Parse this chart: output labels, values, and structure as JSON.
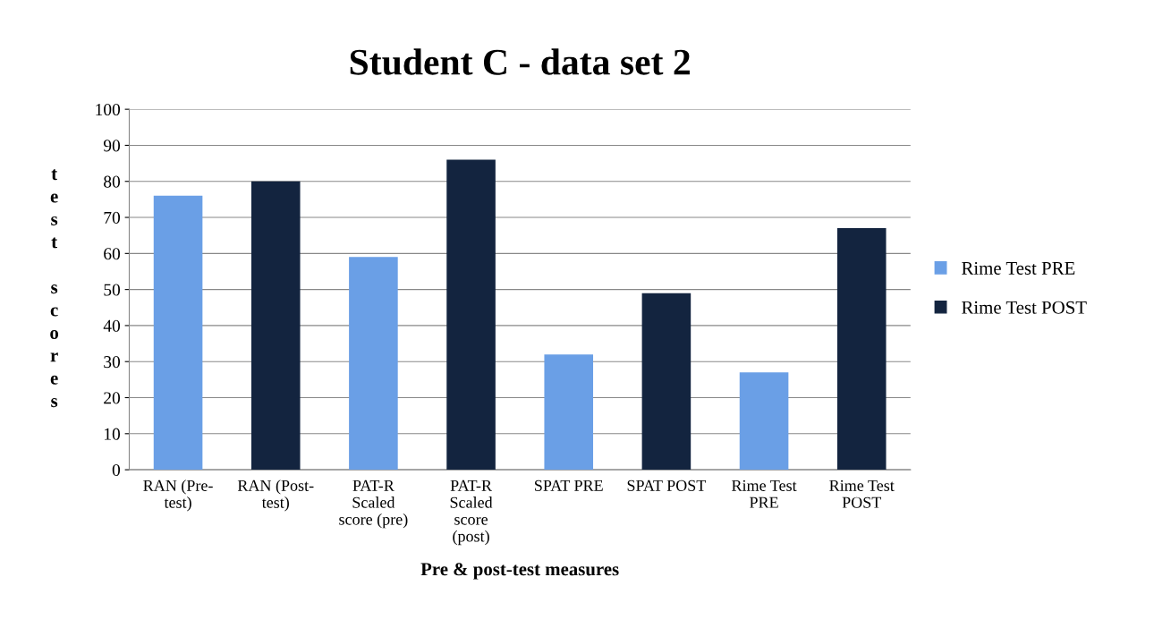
{
  "chart_data": {
    "type": "bar",
    "title": "Student C - data set 2",
    "xlabel": "Pre & post-test measures",
    "ylabel": "test scores",
    "categories": [
      "RAN (Pre-\ntest)",
      "RAN (Post-\ntest)",
      "PAT-R\nScaled\nscore (pre)",
      "PAT-R\nScaled\nscore\n(post)",
      "SPAT PRE",
      "SPAT POST",
      "Rime Test\nPRE",
      "Rime Test\nPOST"
    ],
    "series": [
      {
        "name": "Rime Test PRE",
        "color": "#6a9fe6",
        "values": [
          76,
          null,
          59,
          null,
          32,
          null,
          27,
          null
        ]
      },
      {
        "name": "Rime Test POST",
        "color": "#13243f",
        "values": [
          null,
          80,
          null,
          86,
          null,
          49,
          null,
          67
        ]
      }
    ],
    "ylim": [
      0,
      100
    ],
    "yticks": [
      0,
      10,
      20,
      30,
      40,
      50,
      60,
      70,
      80,
      90,
      100
    ],
    "grid": "y",
    "legend": "right"
  }
}
